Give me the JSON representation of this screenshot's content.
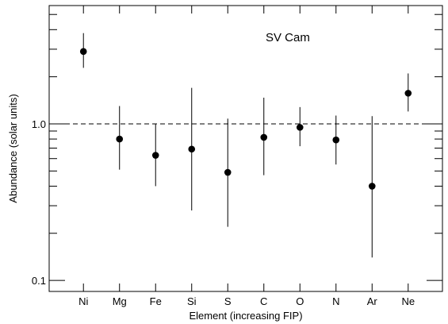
{
  "chart_data": {
    "type": "scatter",
    "title": "",
    "annotation": "SV Cam",
    "xlabel": "Element (increasing FIP)",
    "ylabel": "Abundance (solar units)",
    "yscale": "log",
    "ylim": [
      0.085,
      5.7
    ],
    "y_tick_labels": [
      {
        "value": 0.1,
        "label": "0.1"
      },
      {
        "value": 1.0,
        "label": "1.0"
      }
    ],
    "reference_line": {
      "value": 1.0,
      "style": "dashed"
    },
    "grid": false,
    "categories": [
      "Ni",
      "Mg",
      "Fe",
      "Si",
      "S",
      "C",
      "O",
      "N",
      "Ar",
      "Ne"
    ],
    "series": [
      {
        "values": [
          2.9,
          0.8,
          0.63,
          0.69,
          0.49,
          0.82,
          0.95,
          0.79,
          0.4,
          1.57
        ],
        "err_low": [
          2.28,
          0.51,
          0.4,
          0.28,
          0.22,
          0.47,
          0.72,
          0.55,
          0.14,
          1.2
        ],
        "err_high": [
          3.8,
          1.3,
          1.0,
          1.7,
          1.08,
          1.47,
          1.28,
          1.13,
          1.12,
          2.1
        ],
        "marker": "filled-circle",
        "color": "#000000"
      }
    ]
  }
}
